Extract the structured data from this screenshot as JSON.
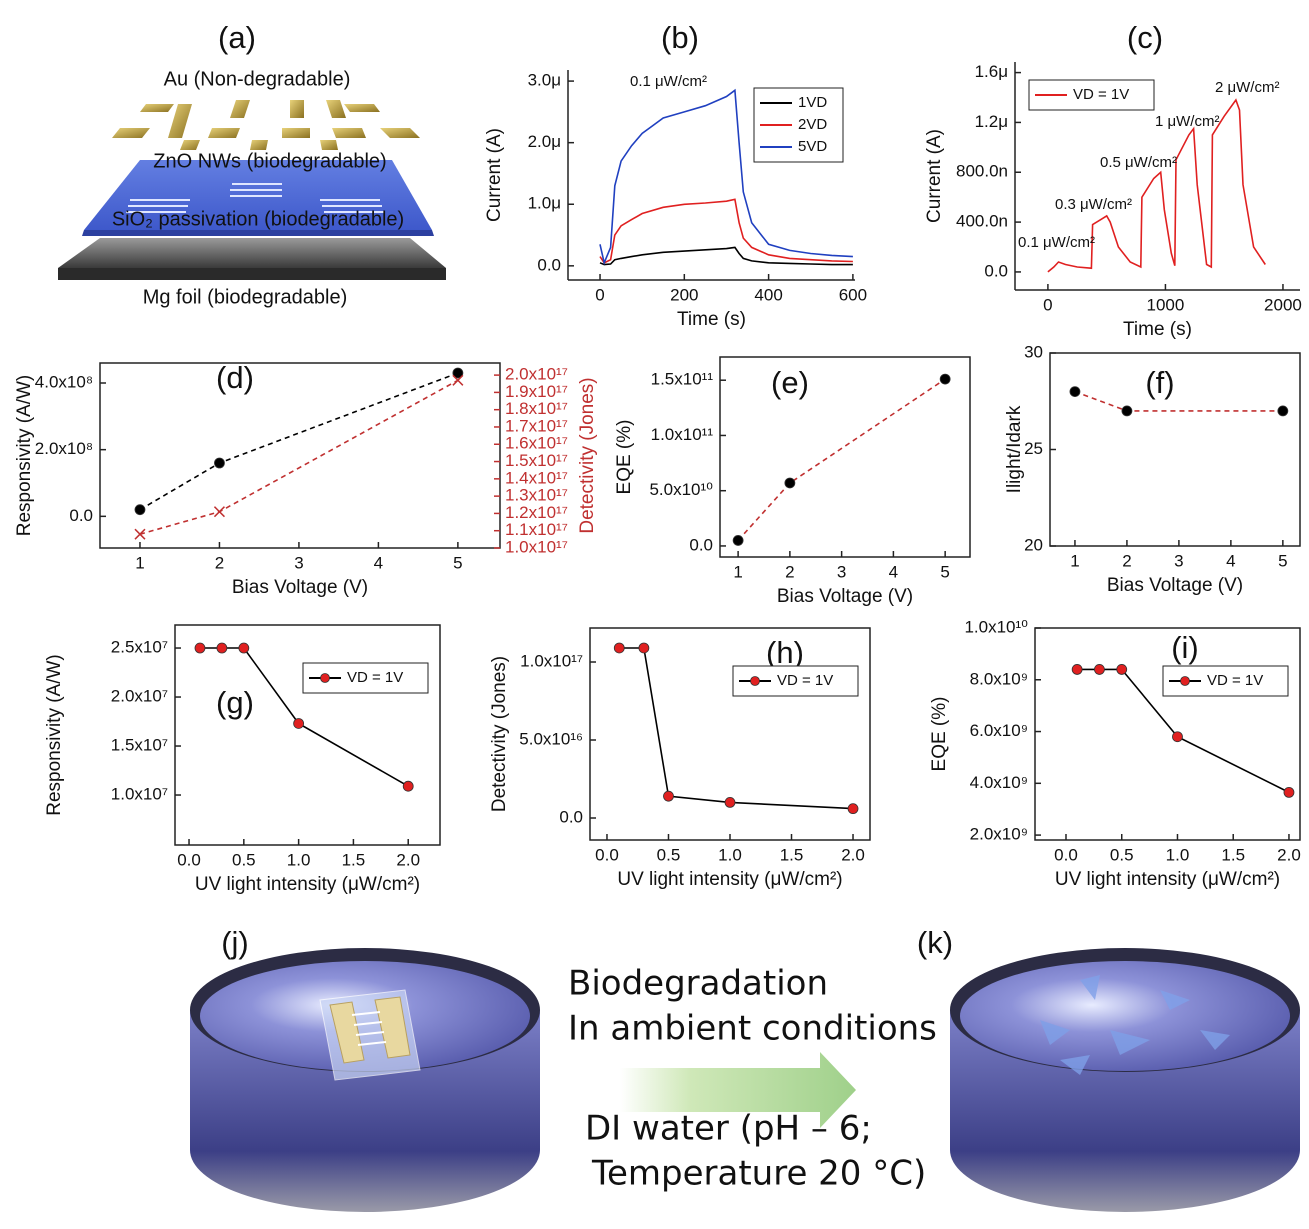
{
  "figure_a": {
    "label": "(a)",
    "layers": [
      "Au (Non-degradable)",
      "ZnO NWs (biodegradable)",
      "SiO₂ passivation (biodegradable)",
      "Mg foil (biodegradable)"
    ]
  },
  "chart_data": [
    {
      "type": "line",
      "label": "(b)",
      "xlabel": "Time (s)",
      "ylabel": "Current (A)",
      "xlim": [
        -76,
        605
      ],
      "xticks": [
        0,
        200,
        400,
        600
      ],
      "ylim": [
        -2.3e-07,
        3.18e-06
      ],
      "yticks": [
        {
          "value": 0,
          "label": "0.0"
        },
        {
          "value": 1e-06,
          "label": "1.0μ"
        },
        {
          "value": 2e-06,
          "label": "2.0μ"
        },
        {
          "value": 3e-06,
          "label": "3.0μ"
        }
      ],
      "x": [
        0,
        10,
        25,
        35,
        50,
        75,
        100,
        150,
        200,
        250,
        300,
        320,
        330,
        340,
        360,
        400,
        450,
        500,
        550,
        600
      ],
      "series": [
        {
          "name": "1VD",
          "color": "#000000",
          "values": [
            5e-08,
            2e-08,
            3e-08,
            1e-07,
            1.2e-07,
            1.5e-07,
            1.8e-07,
            2.2e-07,
            2.4e-07,
            2.6e-07,
            2.8e-07,
            3e-07,
            2e-07,
            1.2e-07,
            8e-08,
            5e-08,
            4e-08,
            3e-08,
            2e-08,
            2e-08
          ]
        },
        {
          "name": "2VD",
          "color": "#e02020",
          "values": [
            1.5e-07,
            5e-08,
            1e-07,
            5e-07,
            6.5e-07,
            7.5e-07,
            8.5e-07,
            9.5e-07,
            1e-06,
            1.02e-06,
            1.05e-06,
            1.08e-06,
            7e-07,
            4.5e-07,
            3e-07,
            1.8e-07,
            1.2e-07,
            1e-07,
            8e-08,
            7e-08
          ]
        },
        {
          "name": "5VD",
          "color": "#2040c0",
          "values": [
            3.5e-07,
            5e-08,
            3e-07,
            1.3e-06,
            1.7e-06,
            1.95e-06,
            2.15e-06,
            2.4e-06,
            2.5e-06,
            2.6e-06,
            2.75e-06,
            2.85e-06,
            2e-06,
            1.2e-06,
            7e-07,
            3.5e-07,
            2.5e-07,
            2e-07,
            1.7e-07,
            1.5e-07
          ]
        }
      ],
      "line_style": "solid",
      "legend": "upper right",
      "annotations": [
        "0.1 μW/cm²"
      ]
    },
    {
      "type": "line",
      "label": "(c)",
      "xlabel": "Time (s)",
      "ylabel": "Current (A)",
      "xlim": [
        -280,
        2145
      ],
      "xticks": [
        0,
        1000,
        2000
      ],
      "ylim": [
        -1.45e-07,
        1.685e-06
      ],
      "yticks": [
        {
          "value": 0,
          "label": "0.0"
        },
        {
          "value": 4e-07,
          "label": "400.0n"
        },
        {
          "value": 8e-07,
          "label": "800.0n"
        },
        {
          "value": 1.2e-06,
          "label": "1.2μ"
        },
        {
          "value": 1.6e-06,
          "label": "1.6μ"
        }
      ],
      "x": [
        0,
        50,
        90,
        150,
        250,
        370,
        380,
        450,
        500,
        530,
        600,
        700,
        790,
        800,
        900,
        960,
        990,
        1050,
        1080,
        1090,
        1200,
        1240,
        1270,
        1350,
        1390,
        1400,
        1500,
        1600,
        1630,
        1660,
        1750,
        1850
      ],
      "series": [
        {
          "name": "VD = 1V",
          "color": "#e02020",
          "values": [
            0,
            4e-08,
            8e-08,
            6e-08,
            4e-08,
            3e-08,
            3.8e-07,
            4.2e-07,
            4.5e-07,
            4e-07,
            2e-07,
            8e-08,
            4e-08,
            6e-07,
            7.5e-07,
            8e-07,
            5e-07,
            1.5e-07,
            5e-08,
            9e-07,
            1.1e-06,
            1.15e-06,
            7e-07,
            6e-08,
            4e-08,
            1.1e-06,
            1.25e-06,
            1.38e-06,
            1.3e-06,
            7e-07,
            2e-07,
            6e-08
          ]
        }
      ],
      "line_style": "solid",
      "legend": "upper left",
      "annotations": [
        "0.1 μW/cm²",
        "0.3 μW/cm²",
        "0.5 μW/cm²",
        "1 μW/cm²",
        "2 μW/cm²"
      ]
    },
    {
      "type": "line",
      "label": "(d)",
      "xlabel": "Bias Voltage (V)",
      "ylabel": "Responsivity (A/W)",
      "y2label": "Detectivity (Jones)",
      "xlim": [
        0.497,
        5.53
      ],
      "xticks": [
        1,
        2,
        3,
        4,
        5
      ],
      "ylim": [
        -95000000.0,
        460000000.0
      ],
      "yticks": [
        {
          "value": 0,
          "label": "0.0"
        },
        {
          "value": 200000000.0,
          "label": "2.0x10⁸"
        },
        {
          "value": 400000000.0,
          "label": "4.0x10⁸"
        }
      ],
      "y2lim": [
        1e+17,
        2.07e+17
      ],
      "y2ticks": [
        {
          "value": 1e+17,
          "label": "1.0x10¹⁷"
        },
        {
          "value": 1.1e+17,
          "label": "1.1x10¹⁷"
        },
        {
          "value": 1.2e+17,
          "label": "1.2x10¹⁷"
        },
        {
          "value": 1.3e+17,
          "label": "1.3x10¹⁷"
        },
        {
          "value": 1.4e+17,
          "label": "1.4x10¹⁷"
        },
        {
          "value": 1.5e+17,
          "label": "1.5x10¹⁷"
        },
        {
          "value": 1.6e+17,
          "label": "1.6x10¹⁷"
        },
        {
          "value": 1.7e+17,
          "label": "1.7x10¹⁷"
        },
        {
          "value": 1.8e+17,
          "label": "1.8x10¹⁷"
        },
        {
          "value": 1.9e+17,
          "label": "1.9x10¹⁷"
        },
        {
          "value": 2e+17,
          "label": "2.0x10¹⁷"
        }
      ],
      "x": [
        1,
        2,
        5
      ],
      "series": [
        {
          "color": "#000000",
          "marker": "circle",
          "marker_color": "#000000",
          "values": [
            20000000.0,
            160000000.0,
            430000000.0
          ]
        },
        {
          "color": "#c03030",
          "marker": "x",
          "marker_color": "#c03030",
          "axis": "y2",
          "values": [
            1.08e+17,
            1.21e+17,
            1.97e+17
          ]
        }
      ],
      "line_style": "dashed"
    },
    {
      "type": "line",
      "label": "(e)",
      "xlabel": "Bias Voltage (V)",
      "ylabel": "EQE (%)",
      "xlim": [
        0.65,
        5.48
      ],
      "xticks": [
        1,
        2,
        3,
        4,
        5
      ],
      "ylim": [
        -10000000000.0,
        171000000000.0
      ],
      "yticks": [
        {
          "value": 0,
          "label": "0.0"
        },
        {
          "value": 50000000000.0,
          "label": "5.0x10¹⁰"
        },
        {
          "value": 100000000000.0,
          "label": "1.0x10¹¹"
        },
        {
          "value": 150000000000.0,
          "label": "1.5x10¹¹"
        }
      ],
      "x": [
        1,
        2,
        5
      ],
      "series": [
        {
          "color": "#c03030",
          "marker": "circle",
          "marker_color": "#000000",
          "values": [
            5000000000.0,
            57000000000.0,
            151000000000.0
          ]
        }
      ],
      "line_style": "dashed"
    },
    {
      "type": "line",
      "label": "(f)",
      "xlabel": "Bias Voltage (V)",
      "ylabel": "Ilight/Idark",
      "xlim": [
        0.52,
        5.33
      ],
      "xticks": [
        1,
        2,
        3,
        4,
        5
      ],
      "ylim": [
        20,
        30
      ],
      "yticks": [
        20,
        25,
        30
      ],
      "x": [
        1,
        2,
        5
      ],
      "series": [
        {
          "color": "#c03030",
          "marker": "circle",
          "marker_color": "#000000",
          "values": [
            28,
            27,
            27
          ]
        }
      ],
      "line_style": "dashed"
    },
    {
      "type": "line",
      "label": "(g)",
      "xlabel": "UV light intensity (μW/cm²)",
      "ylabel": "Responsivity (A/W)",
      "xlim": [
        -0.128,
        2.29
      ],
      "xticks": [
        {
          "value": 0,
          "label": "0.0"
        },
        {
          "value": 0.5,
          "label": "0.5"
        },
        {
          "value": 1,
          "label": "1.0"
        },
        {
          "value": 1.5,
          "label": "1.5"
        },
        {
          "value": 2,
          "label": "2.0"
        }
      ],
      "ylim": [
        4900000.0,
        27350000.0
      ],
      "yticks": [
        {
          "value": 10000000.0,
          "label": "1.0x10⁷"
        },
        {
          "value": 15000000.0,
          "label": "1.5x10⁷"
        },
        {
          "value": 20000000.0,
          "label": "2.0x10⁷"
        },
        {
          "value": 25000000.0,
          "label": "2.5x10⁷"
        }
      ],
      "x": [
        0.1,
        0.3,
        0.5,
        1.0,
        2.0
      ],
      "series": [
        {
          "name": "VD = 1V",
          "color": "#000000",
          "marker": "circle",
          "marker_color": "#e02020",
          "values": [
            25000000.0,
            25000000.0,
            25000000.0,
            17300000.0,
            10900000.0
          ]
        }
      ],
      "line_style": "solid",
      "legend": "upper right"
    },
    {
      "type": "line",
      "label": "(h)",
      "xlabel": "UV light intensity (μW/cm²)",
      "ylabel": "Detectivity (Jones)",
      "xlim": [
        -0.138,
        2.138
      ],
      "xticks": [
        {
          "value": 0,
          "label": "0.0"
        },
        {
          "value": 0.5,
          "label": "0.5"
        },
        {
          "value": 1,
          "label": "1.0"
        },
        {
          "value": 1.5,
          "label": "1.5"
        },
        {
          "value": 2,
          "label": "2.0"
        }
      ],
      "ylim": [
        -1.41e+16,
        1.218e+17
      ],
      "yticks": [
        {
          "value": 0,
          "label": "0.0"
        },
        {
          "value": 5e+16,
          "label": "5.0x10¹⁶"
        },
        {
          "value": 1e+17,
          "label": "1.0x10¹⁷"
        }
      ],
      "x": [
        0.1,
        0.3,
        0.5,
        1.0,
        2.0
      ],
      "series": [
        {
          "name": "VD = 1V",
          "color": "#000000",
          "marker": "circle",
          "marker_color": "#e02020",
          "values": [
            1.09e+17,
            1.09e+17,
            1.4e+16,
            1e+16,
            6000000000000000.0
          ]
        }
      ],
      "line_style": "solid",
      "legend": "upper right"
    },
    {
      "type": "line",
      "label": "(i)",
      "xlabel": "UV light intensity (μW/cm²)",
      "ylabel": "EQE (%)",
      "xlim": [
        -0.278,
        2.099
      ],
      "xticks": [
        {
          "value": 0,
          "label": "0.0"
        },
        {
          "value": 0.5,
          "label": "0.5"
        },
        {
          "value": 1,
          "label": "1.0"
        },
        {
          "value": 1.5,
          "label": "1.5"
        },
        {
          "value": 2,
          "label": "2.0"
        }
      ],
      "ylim": [
        1810000000.0,
        10000000000.0
      ],
      "yticks": [
        {
          "value": 2000000000.0,
          "label": "2.0x10⁹"
        },
        {
          "value": 4000000000.0,
          "label": "4.0x10⁹"
        },
        {
          "value": 6000000000.0,
          "label": "6.0x10⁹"
        },
        {
          "value": 8000000000.0,
          "label": "8.0x10⁹"
        },
        {
          "value": 10000000000.0,
          "label": "1.0x10¹⁰"
        }
      ],
      "x": [
        0.1,
        0.3,
        0.5,
        1.0,
        2.0
      ],
      "series": [
        {
          "name": "VD = 1V",
          "color": "#000000",
          "marker": "circle",
          "marker_color": "#e02020",
          "values": [
            8400000000.0,
            8400000000.0,
            8400000000.0,
            5800000000.0,
            3650000000.0
          ]
        }
      ],
      "line_style": "solid",
      "legend": "upper right"
    }
  ],
  "figure_jk": {
    "label_j": "(j)",
    "label_k": "(k)",
    "caption_lines": [
      "Biodegradation",
      "In ambient conditions",
      "DI water (pH – 6;",
      "Temperature 20 °C)"
    ]
  }
}
